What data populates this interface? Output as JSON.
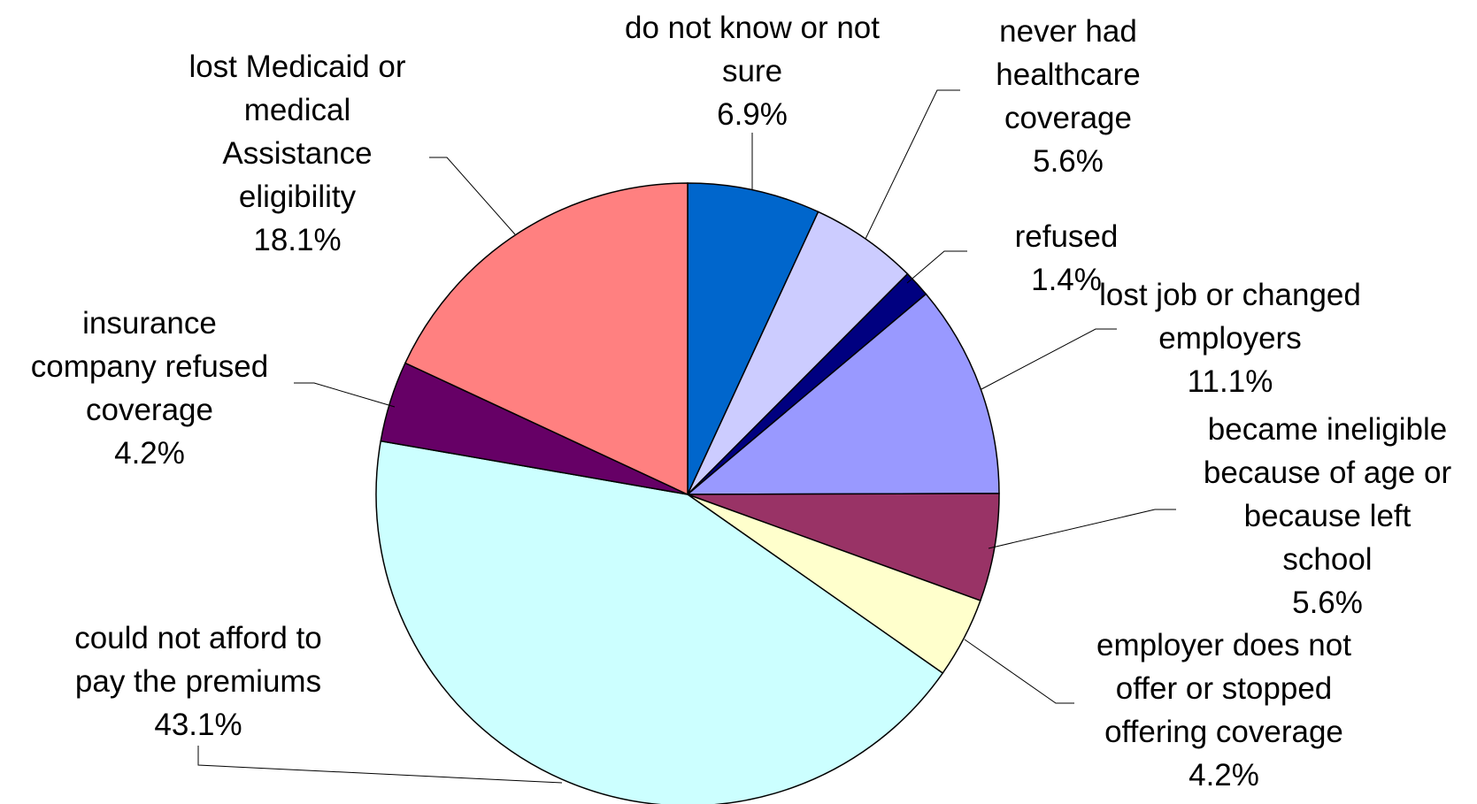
{
  "chart_data": {
    "type": "pie",
    "title": "",
    "grid": false,
    "legend": "none",
    "slices": [
      {
        "label": [
          "do not know or not",
          "sure"
        ],
        "value_label": "6.9%",
        "value": 6.9,
        "color": "#0066CC"
      },
      {
        "label": [
          "never had",
          "healthcare",
          "coverage"
        ],
        "value_label": "5.6%",
        "value": 5.6,
        "color": "#CCCCFF"
      },
      {
        "label": [
          "refused"
        ],
        "value_label": "1.4%",
        "value": 1.4,
        "color": "#000080"
      },
      {
        "label": [
          "lost job or changed",
          "employers"
        ],
        "value_label": "11.1%",
        "value": 11.1,
        "color": "#9999FF"
      },
      {
        "label": [
          "became ineligible",
          "because of age or",
          "because left",
          "school"
        ],
        "value_label": "5.6%",
        "value": 5.6,
        "color": "#993366"
      },
      {
        "label": [
          "employer does not",
          "offer or stopped",
          "offering coverage"
        ],
        "value_label": "4.2%",
        "value": 4.2,
        "color": "#FFFFCC"
      },
      {
        "label": [
          "could not afford to",
          "pay the premiums"
        ],
        "value_label": "43.1%",
        "value": 43.1,
        "color": "#CCFFFF"
      },
      {
        "label": [
          "insurance",
          "company refused",
          "coverage"
        ],
        "value_label": "4.2%",
        "value": 4.2,
        "color": "#660066"
      },
      {
        "label": [
          "lost Medicaid or",
          "medical",
          "Assistance",
          "eligibility"
        ],
        "value_label": "18.1%",
        "value": 18.1,
        "color": "#FF8080"
      }
    ]
  }
}
